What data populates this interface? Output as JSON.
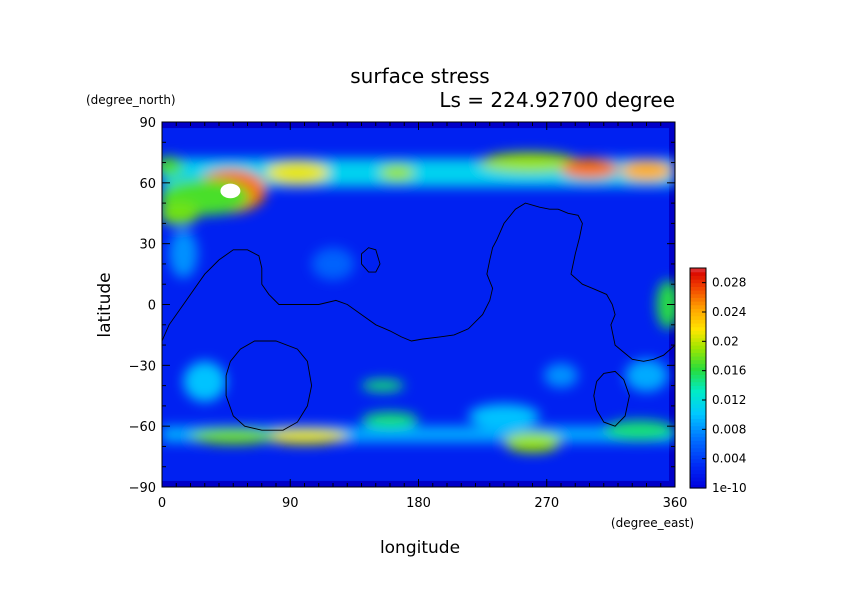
{
  "chart_data": {
    "type": "heatmap",
    "title": "surface stress",
    "subtitle": "Ls = 224.92700 degree",
    "xlabel": "longitude",
    "ylabel": "latitude",
    "x_units": "(degree_east)",
    "y_units": "(degree_north)",
    "xlim": [
      0,
      360
    ],
    "ylim": [
      -90,
      90
    ],
    "data_lat_range": [
      -87,
      87
    ],
    "x_ticks": [
      0,
      90,
      180,
      270,
      360
    ],
    "y_ticks": [
      -90,
      -60,
      -30,
      0,
      30,
      60,
      90
    ],
    "colorbar": {
      "tick_values": [
        0,
        0.004,
        0.008,
        0.012,
        0.016,
        0.02,
        0.024,
        0.028
      ],
      "tick_labels": [
        "1e-10",
        "0.004",
        "0.008",
        "0.012",
        "0.016",
        "0.02",
        "0.024",
        "0.028"
      ],
      "range": [
        0,
        0.03
      ]
    },
    "background_level": 0.0025,
    "bands": [
      {
        "lat": 65,
        "lat_width": 7,
        "lon": [
          0,
          360
        ],
        "level": 0.011
      },
      {
        "lat": -64,
        "lat_width": 4,
        "lon": [
          0,
          360
        ],
        "level": 0.009
      }
    ],
    "features": [
      {
        "lon": 48,
        "lat": 56,
        "rlon": 14,
        "rlat": 6,
        "level": 0.03
      },
      {
        "lon": 30,
        "lat": 53,
        "rlon": 32,
        "rlat": 9,
        "level": 0.017
      },
      {
        "lon": 12,
        "lat": 45,
        "rlon": 14,
        "rlat": 6,
        "level": 0.018
      },
      {
        "lon": 5,
        "lat": 68,
        "rlon": 10,
        "rlat": 5,
        "level": 0.017
      },
      {
        "lon": 95,
        "lat": 65,
        "rlon": 22,
        "rlat": 6,
        "level": 0.021
      },
      {
        "lon": 165,
        "lat": 65,
        "rlon": 12,
        "rlat": 4,
        "level": 0.019
      },
      {
        "lon": 258,
        "lat": 70,
        "rlon": 35,
        "rlat": 5,
        "level": 0.019
      },
      {
        "lon": 300,
        "lat": 67,
        "rlon": 20,
        "rlat": 5,
        "level": 0.026
      },
      {
        "lon": 340,
        "lat": 66,
        "rlon": 18,
        "rlat": 5,
        "level": 0.024
      },
      {
        "lon": 355,
        "lat": 0,
        "rlon": 8,
        "rlat": 12,
        "level": 0.016
      },
      {
        "lon": 15,
        "lat": 25,
        "rlon": 10,
        "rlat": 12,
        "level": 0.008
      },
      {
        "lon": 100,
        "lat": -65,
        "rlon": 30,
        "rlat": 4,
        "level": 0.021
      },
      {
        "lon": 50,
        "lat": -65,
        "rlon": 30,
        "rlat": 4,
        "level": 0.018
      },
      {
        "lon": 160,
        "lat": -57,
        "rlon": 20,
        "rlat": 4,
        "level": 0.015
      },
      {
        "lon": 155,
        "lat": -40,
        "rlon": 15,
        "rlat": 3,
        "level": 0.015
      },
      {
        "lon": 260,
        "lat": -68,
        "rlon": 20,
        "rlat": 5,
        "level": 0.019
      },
      {
        "lon": 240,
        "lat": -55,
        "rlon": 25,
        "rlat": 6,
        "level": 0.01
      },
      {
        "lon": 335,
        "lat": -62,
        "rlon": 25,
        "rlat": 5,
        "level": 0.015
      },
      {
        "lon": 340,
        "lat": -35,
        "rlon": 15,
        "rlat": 8,
        "level": 0.009
      },
      {
        "lon": 30,
        "lat": -38,
        "rlon": 15,
        "rlat": 10,
        "level": 0.01
      },
      {
        "lon": 280,
        "lat": -35,
        "rlon": 12,
        "rlat": 6,
        "level": 0.008
      },
      {
        "lon": 120,
        "lat": 20,
        "rlon": 15,
        "rlat": 8,
        "level": 0.006
      }
    ],
    "topography_contours": [
      [
        [
          0,
          -18
        ],
        [
          5,
          -10
        ],
        [
          15,
          0
        ],
        [
          25,
          10
        ],
        [
          30,
          15
        ],
        [
          40,
          22
        ],
        [
          50,
          27
        ],
        [
          60,
          27
        ],
        [
          68,
          24
        ],
        [
          70,
          18
        ],
        [
          70,
          10
        ],
        [
          75,
          5
        ],
        [
          82,
          0
        ],
        [
          95,
          0
        ],
        [
          110,
          0
        ],
        [
          122,
          2
        ],
        [
          130,
          0
        ],
        [
          140,
          -5
        ],
        [
          150,
          -10
        ],
        [
          160,
          -13
        ],
        [
          168,
          -16
        ],
        [
          175,
          -18
        ],
        [
          183,
          -17
        ],
        [
          195,
          -16
        ],
        [
          205,
          -15
        ],
        [
          215,
          -12
        ],
        [
          225,
          -5
        ],
        [
          230,
          2
        ],
        [
          232,
          8
        ],
        [
          228,
          15
        ],
        [
          230,
          22
        ],
        [
          232,
          28
        ],
        [
          235,
          32
        ],
        [
          240,
          40
        ],
        [
          248,
          47
        ],
        [
          255,
          50
        ],
        [
          265,
          48
        ],
        [
          272,
          47
        ],
        [
          278,
          47
        ],
        [
          285,
          45
        ],
        [
          292,
          44
        ],
        [
          295,
          40
        ],
        [
          293,
          33
        ],
        [
          290,
          25
        ],
        [
          287,
          15
        ],
        [
          295,
          10
        ],
        [
          302,
          8
        ],
        [
          312,
          5
        ],
        [
          316,
          0
        ],
        [
          318,
          -5
        ],
        [
          315,
          -10
        ],
        [
          318,
          -20
        ],
        [
          323,
          -23
        ],
        [
          330,
          -27
        ],
        [
          338,
          -28
        ],
        [
          345,
          -27
        ],
        [
          352,
          -25
        ],
        [
          360,
          -20
        ]
      ],
      [
        [
          140,
          25
        ],
        [
          145,
          28
        ],
        [
          150,
          27
        ],
        [
          153,
          20
        ],
        [
          150,
          16
        ],
        [
          145,
          16
        ],
        [
          140,
          20
        ],
        [
          140,
          25
        ]
      ],
      [
        [
          45,
          -35
        ],
        [
          48,
          -28
        ],
        [
          55,
          -22
        ],
        [
          65,
          -18
        ],
        [
          80,
          -18
        ],
        [
          95,
          -22
        ],
        [
          102,
          -28
        ],
        [
          105,
          -40
        ],
        [
          102,
          -50
        ],
        [
          95,
          -58
        ],
        [
          85,
          -62
        ],
        [
          70,
          -62
        ],
        [
          58,
          -60
        ],
        [
          50,
          -55
        ],
        [
          45,
          -45
        ],
        [
          45,
          -35
        ]
      ],
      [
        [
          305,
          -38
        ],
        [
          310,
          -34
        ],
        [
          318,
          -33
        ],
        [
          324,
          -37
        ],
        [
          328,
          -45
        ],
        [
          325,
          -55
        ],
        [
          318,
          -60
        ],
        [
          310,
          -58
        ],
        [
          305,
          -52
        ],
        [
          303,
          -45
        ],
        [
          305,
          -38
        ]
      ]
    ]
  }
}
